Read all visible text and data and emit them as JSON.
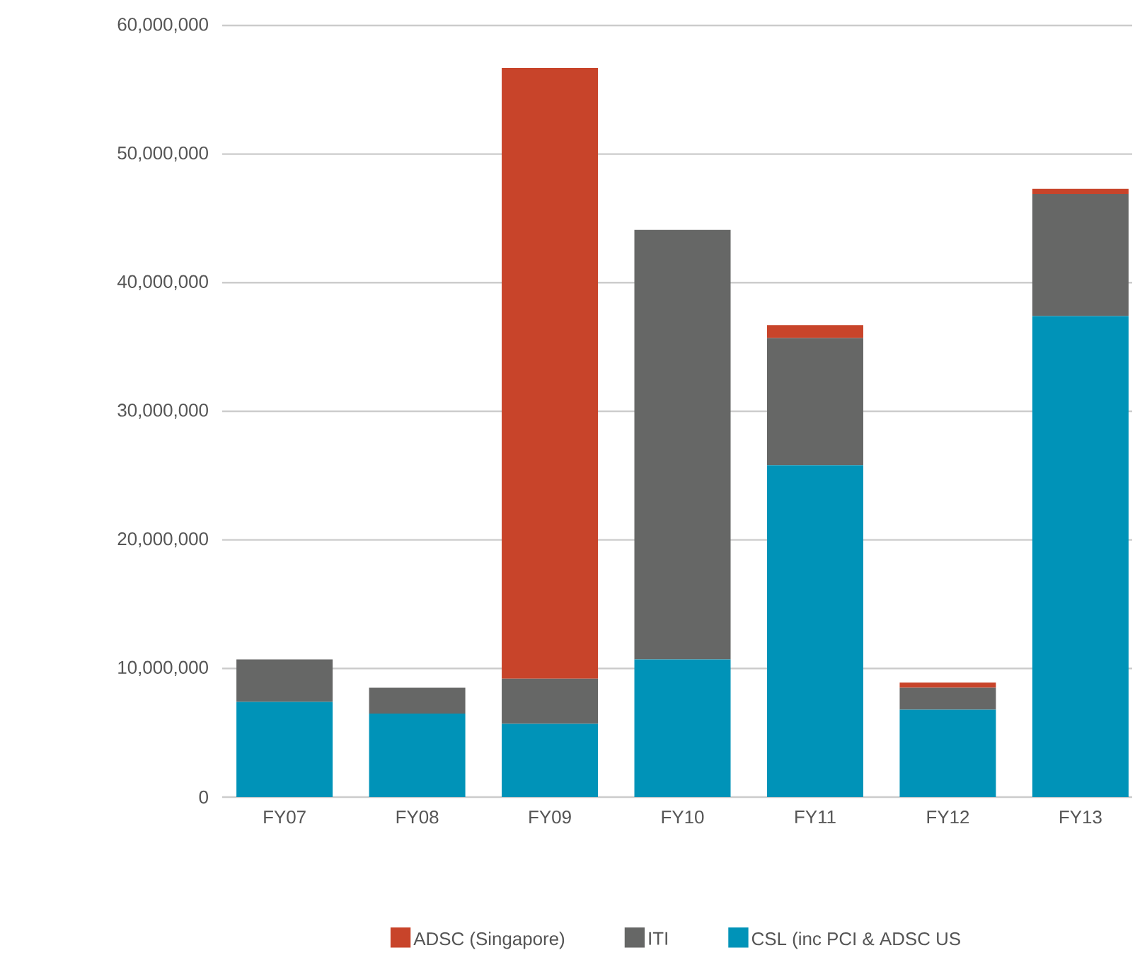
{
  "chart_data": {
    "type": "bar",
    "stacked": true,
    "categories": [
      "FY07",
      "FY08",
      "FY09",
      "FY10",
      "FY11",
      "FY12",
      "FY13"
    ],
    "series": [
      {
        "name": "CSL (inc PCI & ADSC US",
        "color": "#0093b8",
        "values": [
          7400000,
          6500000,
          5700000,
          10700000,
          25800000,
          6800000,
          37400000
        ]
      },
      {
        "name": "ITI",
        "color": "#666766",
        "values": [
          3300000,
          2000000,
          3500000,
          33400000,
          9900000,
          1700000,
          9500000
        ]
      },
      {
        "name": "ADSC (Singapore)",
        "color": "#c8442a",
        "values": [
          null,
          null,
          47500000,
          null,
          1000000,
          400000,
          400000
        ]
      }
    ],
    "ylim": [
      0,
      60000000
    ],
    "yticks": [
      0,
      {
        "value": 10000000,
        "label": "10,000,000"
      },
      {
        "value": 20000000,
        "label": "20,000,000"
      },
      {
        "value": 30000000,
        "label": "30,000,000"
      },
      {
        "value": 40000000,
        "label": "40,000,000"
      },
      {
        "value": 50000000,
        "label": "50,000,000"
      },
      {
        "value": 60000000,
        "label": "60,000,000"
      }
    ],
    "grid": "y",
    "legend": "bottom"
  }
}
